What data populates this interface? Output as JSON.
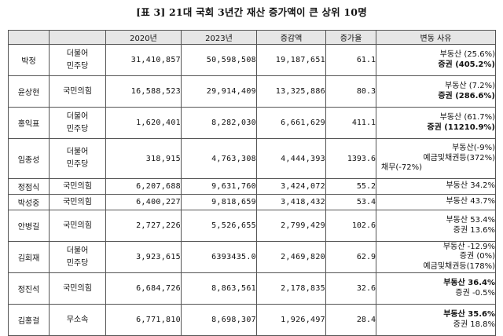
{
  "title": "[표 3] 21대 국회 3년간 재산 증가액이 큰 상위 10명",
  "headers": [
    "",
    "",
    "2020년",
    "2023년",
    "증감액",
    "증가율",
    "변동 사유"
  ],
  "rows": [
    {
      "name": "박정",
      "party_l1": "더불어",
      "party_l2": "민주당",
      "y2020": "31,410,857",
      "y2023": "50,598,508",
      "change": "19,187,651",
      "rate": "61.1",
      "reason_l1": "부동산 (25.6%)",
      "reason_l2": "증권 (405.2%)"
    },
    {
      "name": "윤상현",
      "party_l1": "국민의힘",
      "y2020": "16,588,523",
      "y2023": "29,914,409",
      "change": "13,325,886",
      "rate": "80.3",
      "reason_l1": "부동산 (7.2%)",
      "reason_l2": "증권 (286.6%)"
    },
    {
      "name": "홍익표",
      "party_l1": "더불어",
      "party_l2": "민주당",
      "y2020": "1,620,401",
      "y2023": "8,282,030",
      "change": "6,661,629",
      "rate": "411.1",
      "reason_l1": "부동산 (61.7%)",
      "reason_l2": "증권 (11210.9%)"
    },
    {
      "name": "임종성",
      "party_l1": "더불어",
      "party_l2": "민주당",
      "y2020": "318,915",
      "y2023": "4,763,308",
      "change": "4,444,393",
      "rate": "1393.6",
      "reason_l1": "부동산(-9%)",
      "reason_l2": "예금및채권등(372%)",
      "reason_l3": "채무(-72%)"
    },
    {
      "name": "정점식",
      "party_l1": "국민의힘",
      "y2020": "6,207,688",
      "y2023": "9,631,760",
      "change": "3,424,072",
      "rate": "55.2",
      "reason_l1": "부동산 34.2%"
    },
    {
      "name": "박성중",
      "party_l1": "국민의힘",
      "y2020": "6,400,227",
      "y2023": "9,818,659",
      "change": "3,418,432",
      "rate": "53.4",
      "reason_l1": "부동산 43.7%"
    },
    {
      "name": "안병길",
      "party_l1": "국민의힘",
      "y2020": "2,727,226",
      "y2023": "5,526,655",
      "change": "2,799,429",
      "rate": "102.6",
      "reason_l1": "부동산 53.4%",
      "reason_l2": "증권 13.6%"
    },
    {
      "name": "김회재",
      "party_l1": "더불어",
      "party_l2": "민주당",
      "y2020": "3,923,615",
      "y2023": "6393435.0",
      "change": "2,469,820",
      "rate": "62.9",
      "reason_l1": "부동산 -12.9%",
      "reason_l2": "증권 (0%)",
      "reason_l3": "예금및채권등(178%)"
    },
    {
      "name": "정진석",
      "party_l1": "국민의힘",
      "y2020": "6,684,726",
      "y2023": "8,863,561",
      "change": "2,178,835",
      "rate": "32.6",
      "reason_l1": "부동산 36.4%",
      "reason_l2": "증권 -0.5%"
    },
    {
      "name": "김홍걸",
      "party_l1": "무소속",
      "y2020": "6,771,810",
      "y2023": "8,698,307",
      "change": "1,926,497",
      "rate": "28.4",
      "reason_l1": "부동산 35.6%",
      "reason_l2": "증권 18.8%"
    }
  ]
}
